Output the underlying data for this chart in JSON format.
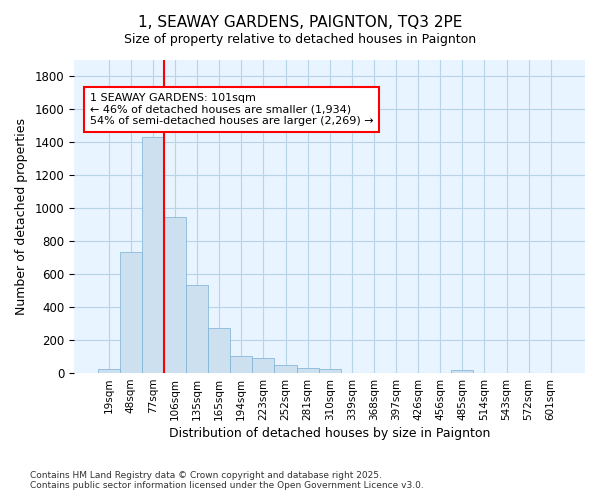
{
  "title": "1, SEAWAY GARDENS, PAIGNTON, TQ3 2PE",
  "subtitle": "Size of property relative to detached houses in Paignton",
  "xlabel": "Distribution of detached houses by size in Paignton",
  "ylabel": "Number of detached properties",
  "categories": [
    "19sqm",
    "48sqm",
    "77sqm",
    "106sqm",
    "135sqm",
    "165sqm",
    "194sqm",
    "223sqm",
    "252sqm",
    "281sqm",
    "310sqm",
    "339sqm",
    "368sqm",
    "397sqm",
    "426sqm",
    "456sqm",
    "485sqm",
    "514sqm",
    "543sqm",
    "572sqm",
    "601sqm"
  ],
  "values": [
    25,
    735,
    1435,
    945,
    535,
    275,
    105,
    90,
    50,
    30,
    25,
    0,
    0,
    0,
    0,
    0,
    20,
    0,
    0,
    0,
    0
  ],
  "bar_color": "#cce0f0",
  "bar_edge_color": "#7aafd4",
  "plot_bg_color": "#e8f4ff",
  "grid_color": "#b8d4e8",
  "fig_bg_color": "#ffffff",
  "annotation_text": "1 SEAWAY GARDENS: 101sqm\n← 46% of detached houses are smaller (1,934)\n54% of semi-detached houses are larger (2,269) →",
  "red_line_x": 3.0,
  "ylim": [
    0,
    1900
  ],
  "yticks": [
    0,
    200,
    400,
    600,
    800,
    1000,
    1200,
    1400,
    1600,
    1800
  ],
  "title_fontsize": 11,
  "subtitle_fontsize": 9,
  "footer": "Contains HM Land Registry data © Crown copyright and database right 2025.\nContains public sector information licensed under the Open Government Licence v3.0."
}
